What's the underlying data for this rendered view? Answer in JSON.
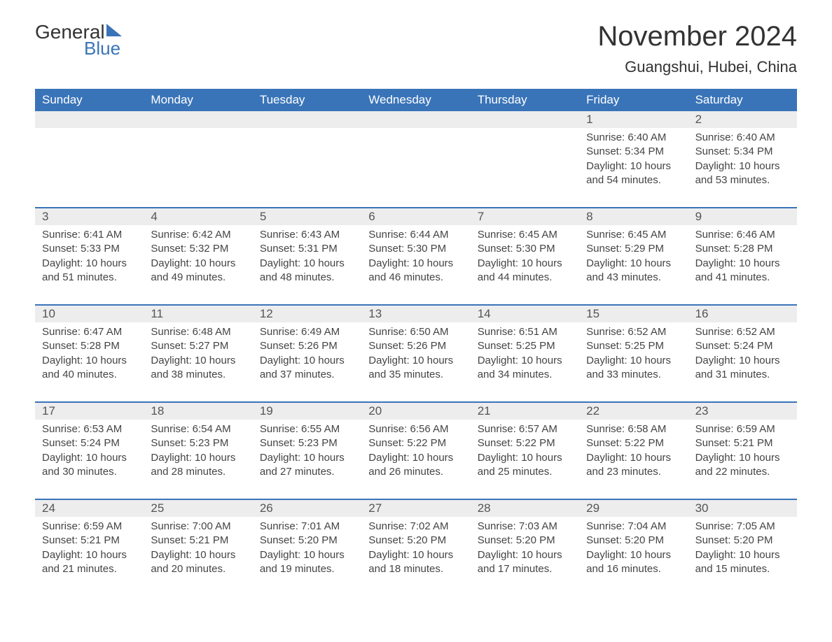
{
  "logo": {
    "text1": "General",
    "text2": "Blue",
    "shape_color": "#3a74b8"
  },
  "title": "November 2024",
  "location": "Guangshui, Hubei, China",
  "colors": {
    "header_bg": "#3a74b8",
    "header_text": "#ffffff",
    "daynum_bg": "#ededed",
    "text": "#333333",
    "body_text": "#444444",
    "border": "#3a74b8",
    "background": "#ffffff"
  },
  "fonts": {
    "title_size": 40,
    "location_size": 22,
    "dayheader_size": 17,
    "daynum_size": 17,
    "body_size": 15,
    "logo_size": 28
  },
  "day_names": [
    "Sunday",
    "Monday",
    "Tuesday",
    "Wednesday",
    "Thursday",
    "Friday",
    "Saturday"
  ],
  "weeks": [
    [
      null,
      null,
      null,
      null,
      null,
      {
        "n": "1",
        "sunrise": "Sunrise: 6:40 AM",
        "sunset": "Sunset: 5:34 PM",
        "dl1": "Daylight: 10 hours",
        "dl2": "and 54 minutes."
      },
      {
        "n": "2",
        "sunrise": "Sunrise: 6:40 AM",
        "sunset": "Sunset: 5:34 PM",
        "dl1": "Daylight: 10 hours",
        "dl2": "and 53 minutes."
      }
    ],
    [
      {
        "n": "3",
        "sunrise": "Sunrise: 6:41 AM",
        "sunset": "Sunset: 5:33 PM",
        "dl1": "Daylight: 10 hours",
        "dl2": "and 51 minutes."
      },
      {
        "n": "4",
        "sunrise": "Sunrise: 6:42 AM",
        "sunset": "Sunset: 5:32 PM",
        "dl1": "Daylight: 10 hours",
        "dl2": "and 49 minutes."
      },
      {
        "n": "5",
        "sunrise": "Sunrise: 6:43 AM",
        "sunset": "Sunset: 5:31 PM",
        "dl1": "Daylight: 10 hours",
        "dl2": "and 48 minutes."
      },
      {
        "n": "6",
        "sunrise": "Sunrise: 6:44 AM",
        "sunset": "Sunset: 5:30 PM",
        "dl1": "Daylight: 10 hours",
        "dl2": "and 46 minutes."
      },
      {
        "n": "7",
        "sunrise": "Sunrise: 6:45 AM",
        "sunset": "Sunset: 5:30 PM",
        "dl1": "Daylight: 10 hours",
        "dl2": "and 44 minutes."
      },
      {
        "n": "8",
        "sunrise": "Sunrise: 6:45 AM",
        "sunset": "Sunset: 5:29 PM",
        "dl1": "Daylight: 10 hours",
        "dl2": "and 43 minutes."
      },
      {
        "n": "9",
        "sunrise": "Sunrise: 6:46 AM",
        "sunset": "Sunset: 5:28 PM",
        "dl1": "Daylight: 10 hours",
        "dl2": "and 41 minutes."
      }
    ],
    [
      {
        "n": "10",
        "sunrise": "Sunrise: 6:47 AM",
        "sunset": "Sunset: 5:28 PM",
        "dl1": "Daylight: 10 hours",
        "dl2": "and 40 minutes."
      },
      {
        "n": "11",
        "sunrise": "Sunrise: 6:48 AM",
        "sunset": "Sunset: 5:27 PM",
        "dl1": "Daylight: 10 hours",
        "dl2": "and 38 minutes."
      },
      {
        "n": "12",
        "sunrise": "Sunrise: 6:49 AM",
        "sunset": "Sunset: 5:26 PM",
        "dl1": "Daylight: 10 hours",
        "dl2": "and 37 minutes."
      },
      {
        "n": "13",
        "sunrise": "Sunrise: 6:50 AM",
        "sunset": "Sunset: 5:26 PM",
        "dl1": "Daylight: 10 hours",
        "dl2": "and 35 minutes."
      },
      {
        "n": "14",
        "sunrise": "Sunrise: 6:51 AM",
        "sunset": "Sunset: 5:25 PM",
        "dl1": "Daylight: 10 hours",
        "dl2": "and 34 minutes."
      },
      {
        "n": "15",
        "sunrise": "Sunrise: 6:52 AM",
        "sunset": "Sunset: 5:25 PM",
        "dl1": "Daylight: 10 hours",
        "dl2": "and 33 minutes."
      },
      {
        "n": "16",
        "sunrise": "Sunrise: 6:52 AM",
        "sunset": "Sunset: 5:24 PM",
        "dl1": "Daylight: 10 hours",
        "dl2": "and 31 minutes."
      }
    ],
    [
      {
        "n": "17",
        "sunrise": "Sunrise: 6:53 AM",
        "sunset": "Sunset: 5:24 PM",
        "dl1": "Daylight: 10 hours",
        "dl2": "and 30 minutes."
      },
      {
        "n": "18",
        "sunrise": "Sunrise: 6:54 AM",
        "sunset": "Sunset: 5:23 PM",
        "dl1": "Daylight: 10 hours",
        "dl2": "and 28 minutes."
      },
      {
        "n": "19",
        "sunrise": "Sunrise: 6:55 AM",
        "sunset": "Sunset: 5:23 PM",
        "dl1": "Daylight: 10 hours",
        "dl2": "and 27 minutes."
      },
      {
        "n": "20",
        "sunrise": "Sunrise: 6:56 AM",
        "sunset": "Sunset: 5:22 PM",
        "dl1": "Daylight: 10 hours",
        "dl2": "and 26 minutes."
      },
      {
        "n": "21",
        "sunrise": "Sunrise: 6:57 AM",
        "sunset": "Sunset: 5:22 PM",
        "dl1": "Daylight: 10 hours",
        "dl2": "and 25 minutes."
      },
      {
        "n": "22",
        "sunrise": "Sunrise: 6:58 AM",
        "sunset": "Sunset: 5:22 PM",
        "dl1": "Daylight: 10 hours",
        "dl2": "and 23 minutes."
      },
      {
        "n": "23",
        "sunrise": "Sunrise: 6:59 AM",
        "sunset": "Sunset: 5:21 PM",
        "dl1": "Daylight: 10 hours",
        "dl2": "and 22 minutes."
      }
    ],
    [
      {
        "n": "24",
        "sunrise": "Sunrise: 6:59 AM",
        "sunset": "Sunset: 5:21 PM",
        "dl1": "Daylight: 10 hours",
        "dl2": "and 21 minutes."
      },
      {
        "n": "25",
        "sunrise": "Sunrise: 7:00 AM",
        "sunset": "Sunset: 5:21 PM",
        "dl1": "Daylight: 10 hours",
        "dl2": "and 20 minutes."
      },
      {
        "n": "26",
        "sunrise": "Sunrise: 7:01 AM",
        "sunset": "Sunset: 5:20 PM",
        "dl1": "Daylight: 10 hours",
        "dl2": "and 19 minutes."
      },
      {
        "n": "27",
        "sunrise": "Sunrise: 7:02 AM",
        "sunset": "Sunset: 5:20 PM",
        "dl1": "Daylight: 10 hours",
        "dl2": "and 18 minutes."
      },
      {
        "n": "28",
        "sunrise": "Sunrise: 7:03 AM",
        "sunset": "Sunset: 5:20 PM",
        "dl1": "Daylight: 10 hours",
        "dl2": "and 17 minutes."
      },
      {
        "n": "29",
        "sunrise": "Sunrise: 7:04 AM",
        "sunset": "Sunset: 5:20 PM",
        "dl1": "Daylight: 10 hours",
        "dl2": "and 16 minutes."
      },
      {
        "n": "30",
        "sunrise": "Sunrise: 7:05 AM",
        "sunset": "Sunset: 5:20 PM",
        "dl1": "Daylight: 10 hours",
        "dl2": "and 15 minutes."
      }
    ]
  ]
}
